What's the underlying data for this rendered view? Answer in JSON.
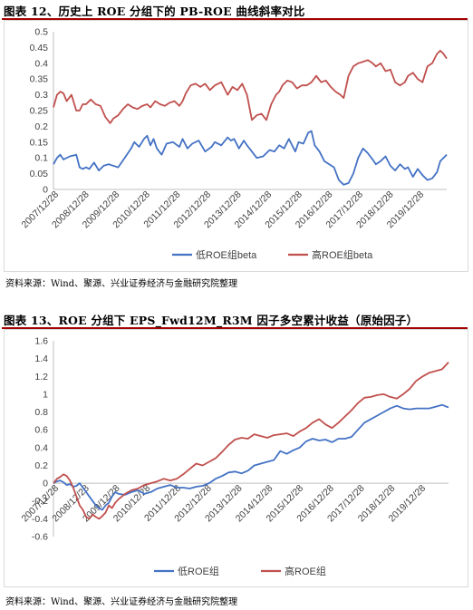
{
  "figures": [
    {
      "title": "图表 12、历史上 ROE 分组下的 PB-ROE 曲线斜率对比",
      "source": "资料来源：Wind、聚源、兴业证券经济与金融研究院整理"
    },
    {
      "title": "图表 13、ROE 分组下 EPS_Fwd12M_R3M 因子多空累计收益（原始因子）",
      "source": "资料来源：Wind、聚源、兴业证券经济与金融研究院整理"
    }
  ],
  "chart_data": [
    {
      "type": "line",
      "title": "",
      "xlabel": "",
      "ylabel": "",
      "ylim": [
        0,
        0.5
      ],
      "yticks": [
        "0",
        "0.05",
        "0.1",
        "0.15",
        "0.2",
        "0.25",
        "0.3",
        "0.35",
        "0.4",
        "0.45",
        "0.5"
      ],
      "x_tick_labels": [
        "2007/12/28",
        "2008/12/28",
        "2009/12/28",
        "2010/12/28",
        "2011/12/28",
        "2012/12/28",
        "2013/12/28",
        "2014/12/28",
        "2015/12/28",
        "2016/12/28",
        "2017/12/28",
        "2018/12/28",
        "2019/12/28"
      ],
      "xlim": [
        2007.99,
        2020.2
      ],
      "grid": false,
      "legend": "bottom",
      "series": [
        {
          "name": "低ROE组beta",
          "color": "#4472c4",
          "x": [
            2007.99,
            2008.1,
            2008.2,
            2008.3,
            2008.5,
            2008.7,
            2008.8,
            2008.9,
            2009.0,
            2009.1,
            2009.25,
            2009.4,
            2009.55,
            2009.7,
            2009.85,
            2010.0,
            2010.2,
            2010.4,
            2010.5,
            2010.65,
            2010.8,
            2010.9,
            2011.0,
            2011.1,
            2011.2,
            2011.35,
            2011.5,
            2011.7,
            2011.9,
            2012.0,
            2012.15,
            2012.3,
            2012.5,
            2012.7,
            2012.9,
            2013.0,
            2013.2,
            2013.4,
            2013.5,
            2013.6,
            2013.75,
            2013.9,
            2014.0,
            2014.15,
            2014.3,
            2014.5,
            2014.7,
            2014.85,
            2015.0,
            2015.15,
            2015.3,
            2015.5,
            2015.6,
            2015.75,
            2015.9,
            2016.0,
            2016.1,
            2016.25,
            2016.4,
            2016.55,
            2016.7,
            2016.85,
            2017.0,
            2017.15,
            2017.3,
            2017.45,
            2017.6,
            2017.75,
            2017.9,
            2018.0,
            2018.15,
            2018.3,
            2018.45,
            2018.6,
            2018.75,
            2018.9,
            2019.0,
            2019.15,
            2019.3,
            2019.45,
            2019.6,
            2019.75,
            2019.9,
            2020.0,
            2020.1,
            2020.2
          ],
          "y": [
            0.08,
            0.1,
            0.11,
            0.095,
            0.105,
            0.11,
            0.07,
            0.065,
            0.07,
            0.065,
            0.085,
            0.06,
            0.075,
            0.08,
            0.075,
            0.07,
            0.1,
            0.13,
            0.15,
            0.135,
            0.16,
            0.17,
            0.14,
            0.16,
            0.13,
            0.11,
            0.145,
            0.15,
            0.135,
            0.16,
            0.13,
            0.145,
            0.155,
            0.12,
            0.135,
            0.15,
            0.14,
            0.165,
            0.155,
            0.16,
            0.13,
            0.155,
            0.14,
            0.12,
            0.1,
            0.105,
            0.125,
            0.12,
            0.14,
            0.13,
            0.16,
            0.12,
            0.15,
            0.145,
            0.18,
            0.185,
            0.14,
            0.12,
            0.09,
            0.08,
            0.07,
            0.03,
            0.015,
            0.02,
            0.05,
            0.1,
            0.13,
            0.115,
            0.095,
            0.08,
            0.09,
            0.105,
            0.075,
            0.06,
            0.08,
            0.065,
            0.07,
            0.04,
            0.065,
            0.045,
            0.03,
            0.035,
            0.055,
            0.09,
            0.1,
            0.11
          ]
        },
        {
          "name": "高ROE组beta",
          "color": "#c0504d",
          "x": [
            2007.99,
            2008.1,
            2008.2,
            2008.3,
            2008.4,
            2008.55,
            2008.7,
            2008.8,
            2008.9,
            2009.0,
            2009.15,
            2009.3,
            2009.45,
            2009.6,
            2009.75,
            2009.85,
            2010.0,
            2010.15,
            2010.3,
            2010.45,
            2010.6,
            2010.75,
            2010.9,
            2011.0,
            2011.15,
            2011.3,
            2011.45,
            2011.6,
            2011.75,
            2011.9,
            2012.0,
            2012.1,
            2012.25,
            2012.4,
            2012.55,
            2012.7,
            2012.85,
            2013.0,
            2013.2,
            2013.4,
            2013.55,
            2013.7,
            2013.85,
            2014.0,
            2014.15,
            2014.3,
            2014.45,
            2014.6,
            2014.75,
            2014.9,
            2015.0,
            2015.1,
            2015.25,
            2015.4,
            2015.55,
            2015.7,
            2015.85,
            2016.0,
            2016.15,
            2016.3,
            2016.45,
            2016.6,
            2016.75,
            2016.9,
            2017.0,
            2017.15,
            2017.3,
            2017.45,
            2017.6,
            2017.75,
            2017.9,
            2018.0,
            2018.15,
            2018.3,
            2018.45,
            2018.6,
            2018.75,
            2018.9,
            2019.0,
            2019.15,
            2019.3,
            2019.45,
            2019.6,
            2019.75,
            2019.9,
            2020.0,
            2020.1,
            2020.2
          ],
          "y": [
            0.26,
            0.3,
            0.31,
            0.305,
            0.28,
            0.3,
            0.25,
            0.25,
            0.27,
            0.27,
            0.285,
            0.27,
            0.265,
            0.23,
            0.21,
            0.225,
            0.235,
            0.255,
            0.27,
            0.26,
            0.255,
            0.265,
            0.27,
            0.26,
            0.28,
            0.27,
            0.265,
            0.275,
            0.28,
            0.265,
            0.28,
            0.305,
            0.33,
            0.335,
            0.325,
            0.335,
            0.315,
            0.33,
            0.34,
            0.3,
            0.325,
            0.315,
            0.335,
            0.3,
            0.22,
            0.235,
            0.24,
            0.22,
            0.27,
            0.3,
            0.31,
            0.33,
            0.345,
            0.34,
            0.32,
            0.33,
            0.33,
            0.34,
            0.36,
            0.34,
            0.345,
            0.325,
            0.31,
            0.3,
            0.29,
            0.36,
            0.39,
            0.4,
            0.405,
            0.41,
            0.4,
            0.39,
            0.4,
            0.375,
            0.38,
            0.34,
            0.33,
            0.34,
            0.36,
            0.37,
            0.35,
            0.34,
            0.39,
            0.4,
            0.43,
            0.44,
            0.43,
            0.415
          ]
        }
      ]
    },
    {
      "type": "line",
      "title": "",
      "xlabel": "",
      "ylabel": "",
      "ylim": [
        -0.6,
        1.6
      ],
      "yticks": [
        "-0.6",
        "-0.4",
        "-0.2",
        "0",
        "0.2",
        "0.4",
        "0.6",
        "0.8",
        "1",
        "1.2",
        "1.4",
        "1.6"
      ],
      "x_tick_labels": [
        "2007/12/28",
        "2008/12/28",
        "2009/12/28",
        "2010/12/28",
        "2011/12/28",
        "2012/12/28",
        "2013/12/28",
        "2014/12/28",
        "2015/12/28",
        "2016/12/28",
        "2017/12/28",
        "2018/12/28",
        "2019/12/28"
      ],
      "xlim": [
        2007.99,
        2020.2
      ],
      "grid": false,
      "legend": "bottom",
      "series": [
        {
          "name": "低ROE组",
          "color": "#4472c4",
          "x": [
            2007.99,
            2008.1,
            2008.2,
            2008.3,
            2008.4,
            2008.5,
            2008.6,
            2008.7,
            2008.8,
            2008.9,
            2009.0,
            2009.1,
            2009.2,
            2009.3,
            2009.4,
            2009.5,
            2009.6,
            2009.7,
            2009.8,
            2009.9,
            2010.0,
            2010.2,
            2010.4,
            2010.6,
            2010.8,
            2011.0,
            2011.2,
            2011.4,
            2011.6,
            2011.8,
            2012.0,
            2012.2,
            2012.4,
            2012.6,
            2012.8,
            2013.0,
            2013.2,
            2013.4,
            2013.6,
            2013.8,
            2014.0,
            2014.2,
            2014.4,
            2014.6,
            2014.8,
            2015.0,
            2015.2,
            2015.4,
            2015.6,
            2015.8,
            2016.0,
            2016.2,
            2016.4,
            2016.6,
            2016.8,
            2017.0,
            2017.2,
            2017.4,
            2017.6,
            2017.8,
            2018.0,
            2018.2,
            2018.4,
            2018.6,
            2018.8,
            2019.0,
            2019.2,
            2019.4,
            2019.6,
            2019.8,
            2020.0,
            2020.2
          ],
          "y": [
            0.0,
            0.02,
            0.03,
            0.01,
            -0.02,
            -0.01,
            -0.04,
            -0.03,
            0.0,
            -0.05,
            -0.1,
            -0.15,
            -0.2,
            -0.25,
            -0.28,
            -0.3,
            -0.25,
            -0.22,
            -0.15,
            -0.1,
            -0.12,
            -0.13,
            -0.1,
            -0.08,
            -0.12,
            -0.1,
            -0.06,
            -0.04,
            -0.02,
            -0.05,
            -0.05,
            -0.06,
            -0.04,
            -0.03,
            0.0,
            0.05,
            0.08,
            0.12,
            0.13,
            0.11,
            0.14,
            0.2,
            0.22,
            0.24,
            0.26,
            0.36,
            0.33,
            0.37,
            0.4,
            0.47,
            0.5,
            0.48,
            0.49,
            0.46,
            0.5,
            0.5,
            0.52,
            0.6,
            0.68,
            0.72,
            0.76,
            0.8,
            0.84,
            0.87,
            0.84,
            0.83,
            0.84,
            0.84,
            0.84,
            0.86,
            0.88,
            0.85
          ]
        },
        {
          "name": "高ROE组",
          "color": "#c0504d",
          "x": [
            2007.99,
            2008.1,
            2008.2,
            2008.3,
            2008.4,
            2008.5,
            2008.6,
            2008.7,
            2008.8,
            2008.9,
            2009.0,
            2009.1,
            2009.2,
            2009.3,
            2009.4,
            2009.5,
            2009.6,
            2009.7,
            2009.8,
            2009.9,
            2010.0,
            2010.2,
            2010.4,
            2010.6,
            2010.8,
            2011.0,
            2011.2,
            2011.4,
            2011.6,
            2011.8,
            2012.0,
            2012.2,
            2012.4,
            2012.6,
            2012.8,
            2013.0,
            2013.2,
            2013.4,
            2013.6,
            2013.8,
            2014.0,
            2014.2,
            2014.4,
            2014.6,
            2014.8,
            2015.0,
            2015.2,
            2015.4,
            2015.6,
            2015.8,
            2016.0,
            2016.2,
            2016.4,
            2016.6,
            2016.8,
            2017.0,
            2017.2,
            2017.4,
            2017.6,
            2017.8,
            2018.0,
            2018.2,
            2018.4,
            2018.6,
            2018.8,
            2019.0,
            2019.2,
            2019.4,
            2019.6,
            2019.8,
            2020.0,
            2020.2
          ],
          "y": [
            0.0,
            0.05,
            0.07,
            0.1,
            0.08,
            0.03,
            -0.05,
            -0.15,
            -0.25,
            -0.3,
            -0.38,
            -0.4,
            -0.35,
            -0.38,
            -0.4,
            -0.37,
            -0.33,
            -0.25,
            -0.28,
            -0.22,
            -0.18,
            -0.12,
            -0.08,
            -0.06,
            -0.02,
            0.0,
            0.02,
            0.05,
            0.03,
            0.05,
            0.1,
            0.16,
            0.22,
            0.2,
            0.24,
            0.28,
            0.35,
            0.43,
            0.49,
            0.51,
            0.5,
            0.55,
            0.53,
            0.51,
            0.54,
            0.55,
            0.56,
            0.53,
            0.58,
            0.62,
            0.68,
            0.72,
            0.66,
            0.62,
            0.68,
            0.75,
            0.82,
            0.9,
            0.96,
            0.97,
            0.99,
            1.0,
            0.97,
            0.95,
            1.0,
            1.06,
            1.15,
            1.2,
            1.24,
            1.26,
            1.28,
            1.36
          ]
        }
      ]
    }
  ]
}
